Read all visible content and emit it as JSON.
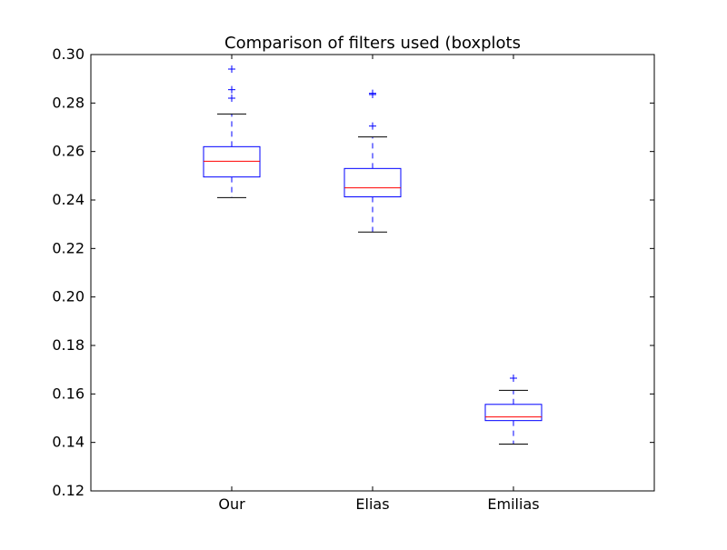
{
  "chart_data": {
    "type": "boxplot",
    "title": "Comparison of filters used (boxplots",
    "xlabel": "",
    "ylabel": "",
    "ylim": [
      0.12,
      0.3
    ],
    "yticks": [
      "0.12",
      "0.14",
      "0.16",
      "0.18",
      "0.20",
      "0.22",
      "0.24",
      "0.26",
      "0.28",
      "0.30"
    ],
    "categories": [
      "Our",
      "Elias",
      "Emilias"
    ],
    "grid": false,
    "colors": {
      "box": "#0000ff",
      "median": "#ff0000",
      "cap": "#000000",
      "axes": "#000000"
    },
    "boxes": [
      {
        "label": "Our",
        "whisker_low": 0.241,
        "q1": 0.2495,
        "median": 0.256,
        "q3": 0.262,
        "whisker_high": 0.2755,
        "outliers": [
          0.282,
          0.2855,
          0.294
        ]
      },
      {
        "label": "Elias",
        "whisker_low": 0.2268,
        "q1": 0.2413,
        "median": 0.245,
        "q3": 0.253,
        "whisker_high": 0.266,
        "outliers": [
          0.2705,
          0.2835,
          0.284
        ]
      },
      {
        "label": "Emilias",
        "whisker_low": 0.1393,
        "q1": 0.149,
        "median": 0.1505,
        "q3": 0.1557,
        "whisker_high": 0.1615,
        "outliers": [
          0.1665
        ]
      }
    ]
  }
}
